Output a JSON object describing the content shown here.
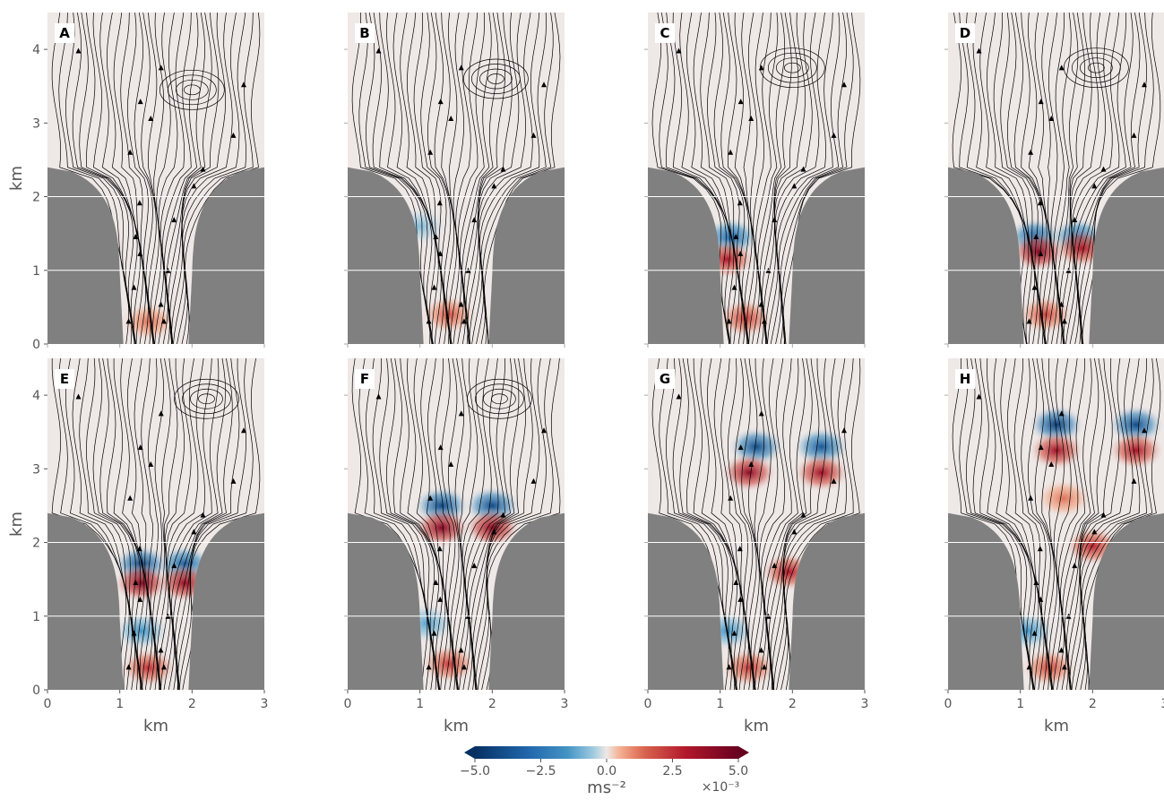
{
  "chart_data": {
    "type": "heatmap",
    "description_style": "8 panels of streamline plots over a vertical acceleration field in a valley/jet geometry",
    "xlabel": "km",
    "ylabel": "km",
    "xlim": [
      0,
      3
    ],
    "ylim": [
      0,
      4.5
    ],
    "x_ticks": [
      "0",
      "1",
      "2",
      "3"
    ],
    "y_ticks": [
      "0",
      "1",
      "2",
      "3",
      "4"
    ],
    "grid": true,
    "panels": [
      {
        "label": "A",
        "features": [
          {
            "kind": "vortex",
            "x": 2.0,
            "y": 3.45,
            "sign": 0
          }
        ],
        "anomalies": [
          {
            "x": 1.4,
            "y": 0.3,
            "amp": 0.25
          }
        ]
      },
      {
        "label": "B",
        "features": [
          {
            "kind": "vortex",
            "x": 2.05,
            "y": 3.6,
            "sign": 0
          }
        ],
        "anomalies": [
          {
            "x": 1.4,
            "y": 0.4,
            "amp": 0.35
          },
          {
            "x": 1.0,
            "y": 1.6,
            "amp": -0.15
          }
        ]
      },
      {
        "label": "C",
        "features": [
          {
            "kind": "vortex",
            "x": 2.0,
            "y": 3.75,
            "sign": 0
          }
        ],
        "anomalies": [
          {
            "x": 1.15,
            "y": 1.45,
            "amp": -0.6
          },
          {
            "x": 1.1,
            "y": 1.15,
            "amp": 0.6
          },
          {
            "x": 1.35,
            "y": 0.35,
            "amp": 0.45
          }
        ]
      },
      {
        "label": "D",
        "features": [
          {
            "kind": "vortex",
            "x": 2.05,
            "y": 3.75,
            "sign": 0
          }
        ],
        "anomalies": [
          {
            "x": 1.2,
            "y": 1.45,
            "amp": -0.7
          },
          {
            "x": 1.8,
            "y": 1.45,
            "amp": -0.6
          },
          {
            "x": 1.25,
            "y": 1.25,
            "amp": 0.85
          },
          {
            "x": 1.85,
            "y": 1.3,
            "amp": 0.6
          },
          {
            "x": 1.35,
            "y": 0.4,
            "amp": 0.4
          }
        ]
      },
      {
        "label": "E",
        "features": [
          {
            "kind": "vortex",
            "x": 2.2,
            "y": 3.95,
            "sign": 0
          }
        ],
        "anomalies": [
          {
            "x": 1.3,
            "y": 1.7,
            "amp": -0.85
          },
          {
            "x": 1.9,
            "y": 1.7,
            "amp": -0.7
          },
          {
            "x": 1.3,
            "y": 1.45,
            "amp": 0.85
          },
          {
            "x": 1.9,
            "y": 1.45,
            "amp": 0.75
          },
          {
            "x": 1.3,
            "y": 0.8,
            "amp": -0.3
          },
          {
            "x": 1.4,
            "y": 0.3,
            "amp": 0.5
          }
        ]
      },
      {
        "label": "F",
        "features": [
          {
            "kind": "vortex",
            "x": 2.1,
            "y": 3.95,
            "sign": 0
          }
        ],
        "anomalies": [
          {
            "x": 1.3,
            "y": 2.5,
            "amp": -0.8
          },
          {
            "x": 2.0,
            "y": 2.5,
            "amp": -0.8
          },
          {
            "x": 1.3,
            "y": 2.2,
            "amp": 0.85
          },
          {
            "x": 2.0,
            "y": 2.2,
            "amp": 0.8
          },
          {
            "x": 1.1,
            "y": 0.9,
            "amp": -0.25
          },
          {
            "x": 1.4,
            "y": 0.35,
            "amp": 0.45
          }
        ]
      },
      {
        "label": "G",
        "features": [],
        "anomalies": [
          {
            "x": 1.5,
            "y": 3.3,
            "amp": -0.8
          },
          {
            "x": 2.4,
            "y": 3.3,
            "amp": -0.7
          },
          {
            "x": 1.4,
            "y": 2.95,
            "amp": 0.8
          },
          {
            "x": 2.4,
            "y": 2.95,
            "amp": 0.7
          },
          {
            "x": 1.95,
            "y": 1.6,
            "amp": 0.6
          },
          {
            "x": 1.1,
            "y": 0.8,
            "amp": -0.3
          },
          {
            "x": 1.4,
            "y": 0.3,
            "amp": 0.45
          }
        ]
      },
      {
        "label": "H",
        "features": [],
        "anomalies": [
          {
            "x": 1.5,
            "y": 3.6,
            "amp": -0.9
          },
          {
            "x": 2.6,
            "y": 3.6,
            "amp": -0.8
          },
          {
            "x": 1.5,
            "y": 3.25,
            "amp": 0.7
          },
          {
            "x": 2.6,
            "y": 3.25,
            "amp": 0.65
          },
          {
            "x": 2.0,
            "y": 1.95,
            "amp": 0.55
          },
          {
            "x": 1.6,
            "y": 2.6,
            "amp": 0.25
          },
          {
            "x": 1.1,
            "y": 0.8,
            "amp": -0.3
          },
          {
            "x": 1.4,
            "y": 0.3,
            "amp": 0.4
          }
        ]
      }
    ],
    "colorbar": {
      "colormap": "RdBu_r",
      "range": [
        -5.0,
        5.0
      ],
      "ticks": [
        "−5.0",
        "−2.5",
        "0.0",
        "2.5",
        "5.0"
      ],
      "label": "ms⁻²",
      "multiplier": "×10⁻³",
      "extend": "both"
    },
    "colors": {
      "terrain": "#808080",
      "streamline": "#000000",
      "tick": "#555555"
    }
  }
}
